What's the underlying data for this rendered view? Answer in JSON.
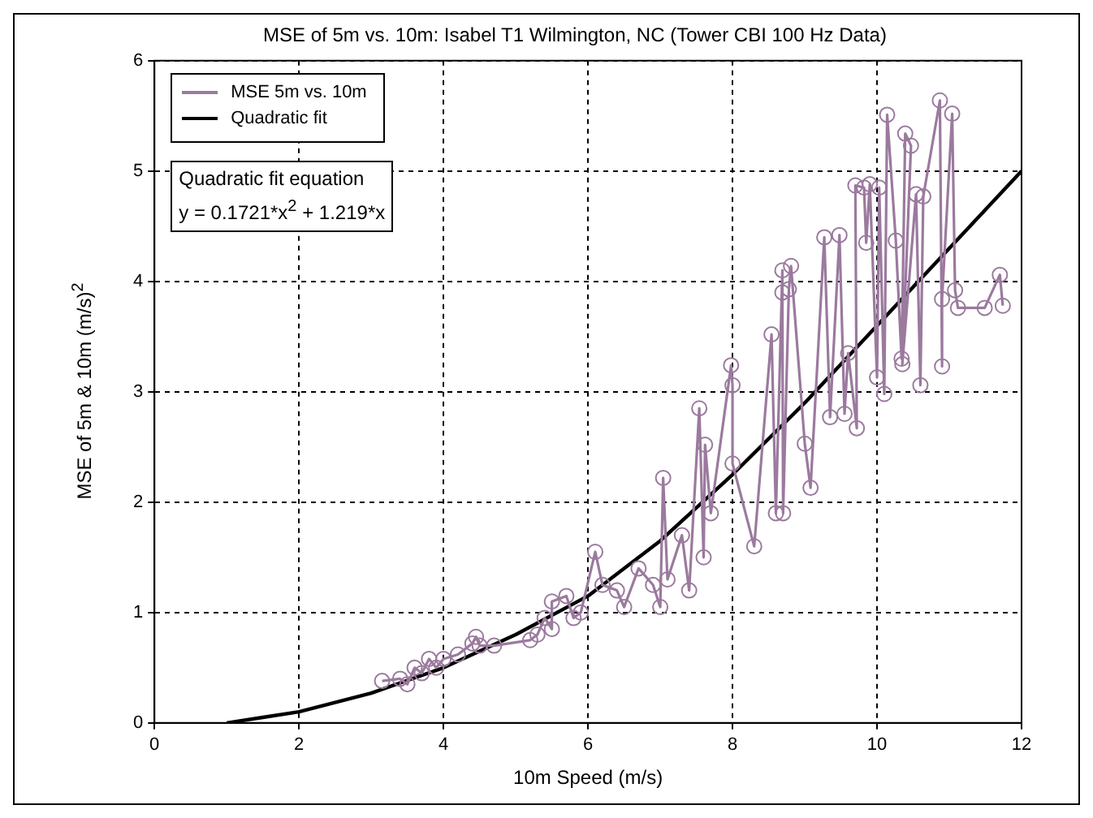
{
  "chart_data": {
    "type": "line",
    "title": "MSE of 5m vs. 10m: Isabel T1 Wilmington, NC (Tower CBI 100 Hz Data)",
    "xlabel": "10m Speed (m/s)",
    "ylabel": "MSE of 5m & 10m (m/s)$^{2}$",
    "xlim": [
      0,
      12
    ],
    "xticks": [
      0,
      2,
      4,
      6,
      8,
      10,
      12
    ],
    "ylim": [
      0,
      6
    ],
    "yticks": [
      0,
      1,
      2,
      3,
      4,
      5,
      6
    ],
    "grid": true,
    "legend": "top left",
    "annotations": [
      "Quadratic fit equation",
      "y = 0.1721*x$^{2}$ + 1.219*x"
    ],
    "series": [
      {
        "name": "MSE 5m vs. 10m",
        "color": "#9b7a9e",
        "marker": "circle",
        "x": [
          3.15,
          3.4,
          3.5,
          3.6,
          3.7,
          3.8,
          3.9,
          4.0,
          4.2,
          4.4,
          4.45,
          4.5,
          4.7,
          5.2,
          5.3,
          5.4,
          5.5,
          5.5,
          5.7,
          5.8,
          5.9,
          6.1,
          6.2,
          6.4,
          6.5,
          6.7,
          6.9,
          7.0,
          7.04,
          7.1,
          7.3,
          7.4,
          7.54,
          7.6,
          7.62,
          7.7,
          7.98,
          8.0,
          8.0,
          8.3,
          8.54,
          8.6,
          8.69,
          8.69,
          8.7,
          8.78,
          8.81,
          9.0,
          9.08,
          9.27,
          9.35,
          9.48,
          9.55,
          9.6,
          9.72,
          9.7,
          9.82,
          9.85,
          9.9,
          10.0,
          10.03,
          10.1,
          10.14,
          10.26,
          10.34,
          10.39,
          10.47,
          10.35,
          10.54,
          10.6,
          10.64,
          10.87,
          10.9,
          10.9,
          11.04,
          11.08,
          11.12,
          11.49,
          11.7,
          11.74
        ],
        "values": [
          0.38,
          0.4,
          0.35,
          0.5,
          0.45,
          0.58,
          0.5,
          0.58,
          0.62,
          0.72,
          0.78,
          0.7,
          0.7,
          0.75,
          0.8,
          0.95,
          0.85,
          1.1,
          1.15,
          0.95,
          1.0,
          1.55,
          1.25,
          1.2,
          1.05,
          1.4,
          1.25,
          1.05,
          2.22,
          1.3,
          1.7,
          1.2,
          2.85,
          1.5,
          2.52,
          1.9,
          3.24,
          3.06,
          2.35,
          1.6,
          3.52,
          1.9,
          4.1,
          3.9,
          1.9,
          3.93,
          4.14,
          2.53,
          2.13,
          4.4,
          2.77,
          4.42,
          2.8,
          3.35,
          2.67,
          4.87,
          4.85,
          4.35,
          4.88,
          3.13,
          4.85,
          2.98,
          5.51,
          4.37,
          3.3,
          5.34,
          5.23,
          3.25,
          4.79,
          3.06,
          4.77,
          5.64,
          3.23,
          3.84,
          5.52,
          3.92,
          3.76,
          3.76,
          4.06,
          3.78
        ]
      },
      {
        "name": "Quadratic fit",
        "color": "#000000",
        "marker": "none",
        "x": [
          1,
          1.5,
          2,
          3,
          4,
          5,
          6,
          7,
          8,
          9,
          10,
          11,
          12
        ],
        "values": [
          0,
          0.05,
          0.1,
          0.27,
          0.5,
          0.8,
          1.15,
          1.65,
          2.25,
          2.9,
          3.6,
          4.3,
          5.0
        ]
      }
    ]
  }
}
